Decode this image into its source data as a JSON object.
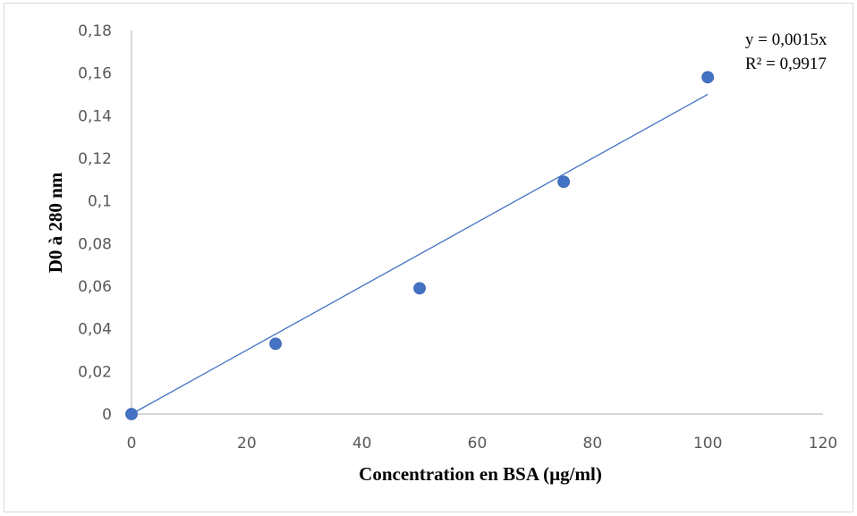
{
  "chart_data": {
    "type": "scatter",
    "title": "",
    "xlabel": "Concentration en BSA (µg/ml)",
    "ylabel": "D0 à 280 nm",
    "xlim": [
      0,
      120
    ],
    "ylim": [
      0,
      0.18
    ],
    "x_ticks": [
      0,
      20,
      40,
      60,
      80,
      100,
      120
    ],
    "y_ticks": [
      0,
      0.02,
      0.04,
      0.06,
      0.08,
      0.1,
      0.12,
      0.14,
      0.16,
      0.18
    ],
    "x_tick_labels": [
      "0",
      "20",
      "40",
      "60",
      "80",
      "100",
      "120"
    ],
    "y_tick_labels": [
      "0",
      "0,02",
      "0,04",
      "0,06",
      "0,08",
      "0,1",
      "0,12",
      "0,14",
      "0,16",
      "0,18"
    ],
    "grid": false,
    "series": [
      {
        "x": [
          0,
          25,
          50,
          75,
          100
        ],
        "y": [
          0,
          0.033,
          0.059,
          0.109,
          0.158
        ],
        "color": "#4472c4"
      }
    ],
    "trendline": {
      "type": "linear",
      "slope": 0.0015,
      "intercept": 0,
      "x_range": [
        0,
        100
      ],
      "color": "#4472c4",
      "equation": "y = 0,0015x",
      "r_squared": "R² = 0,9917"
    },
    "axis_color": "#bfbfbf"
  }
}
